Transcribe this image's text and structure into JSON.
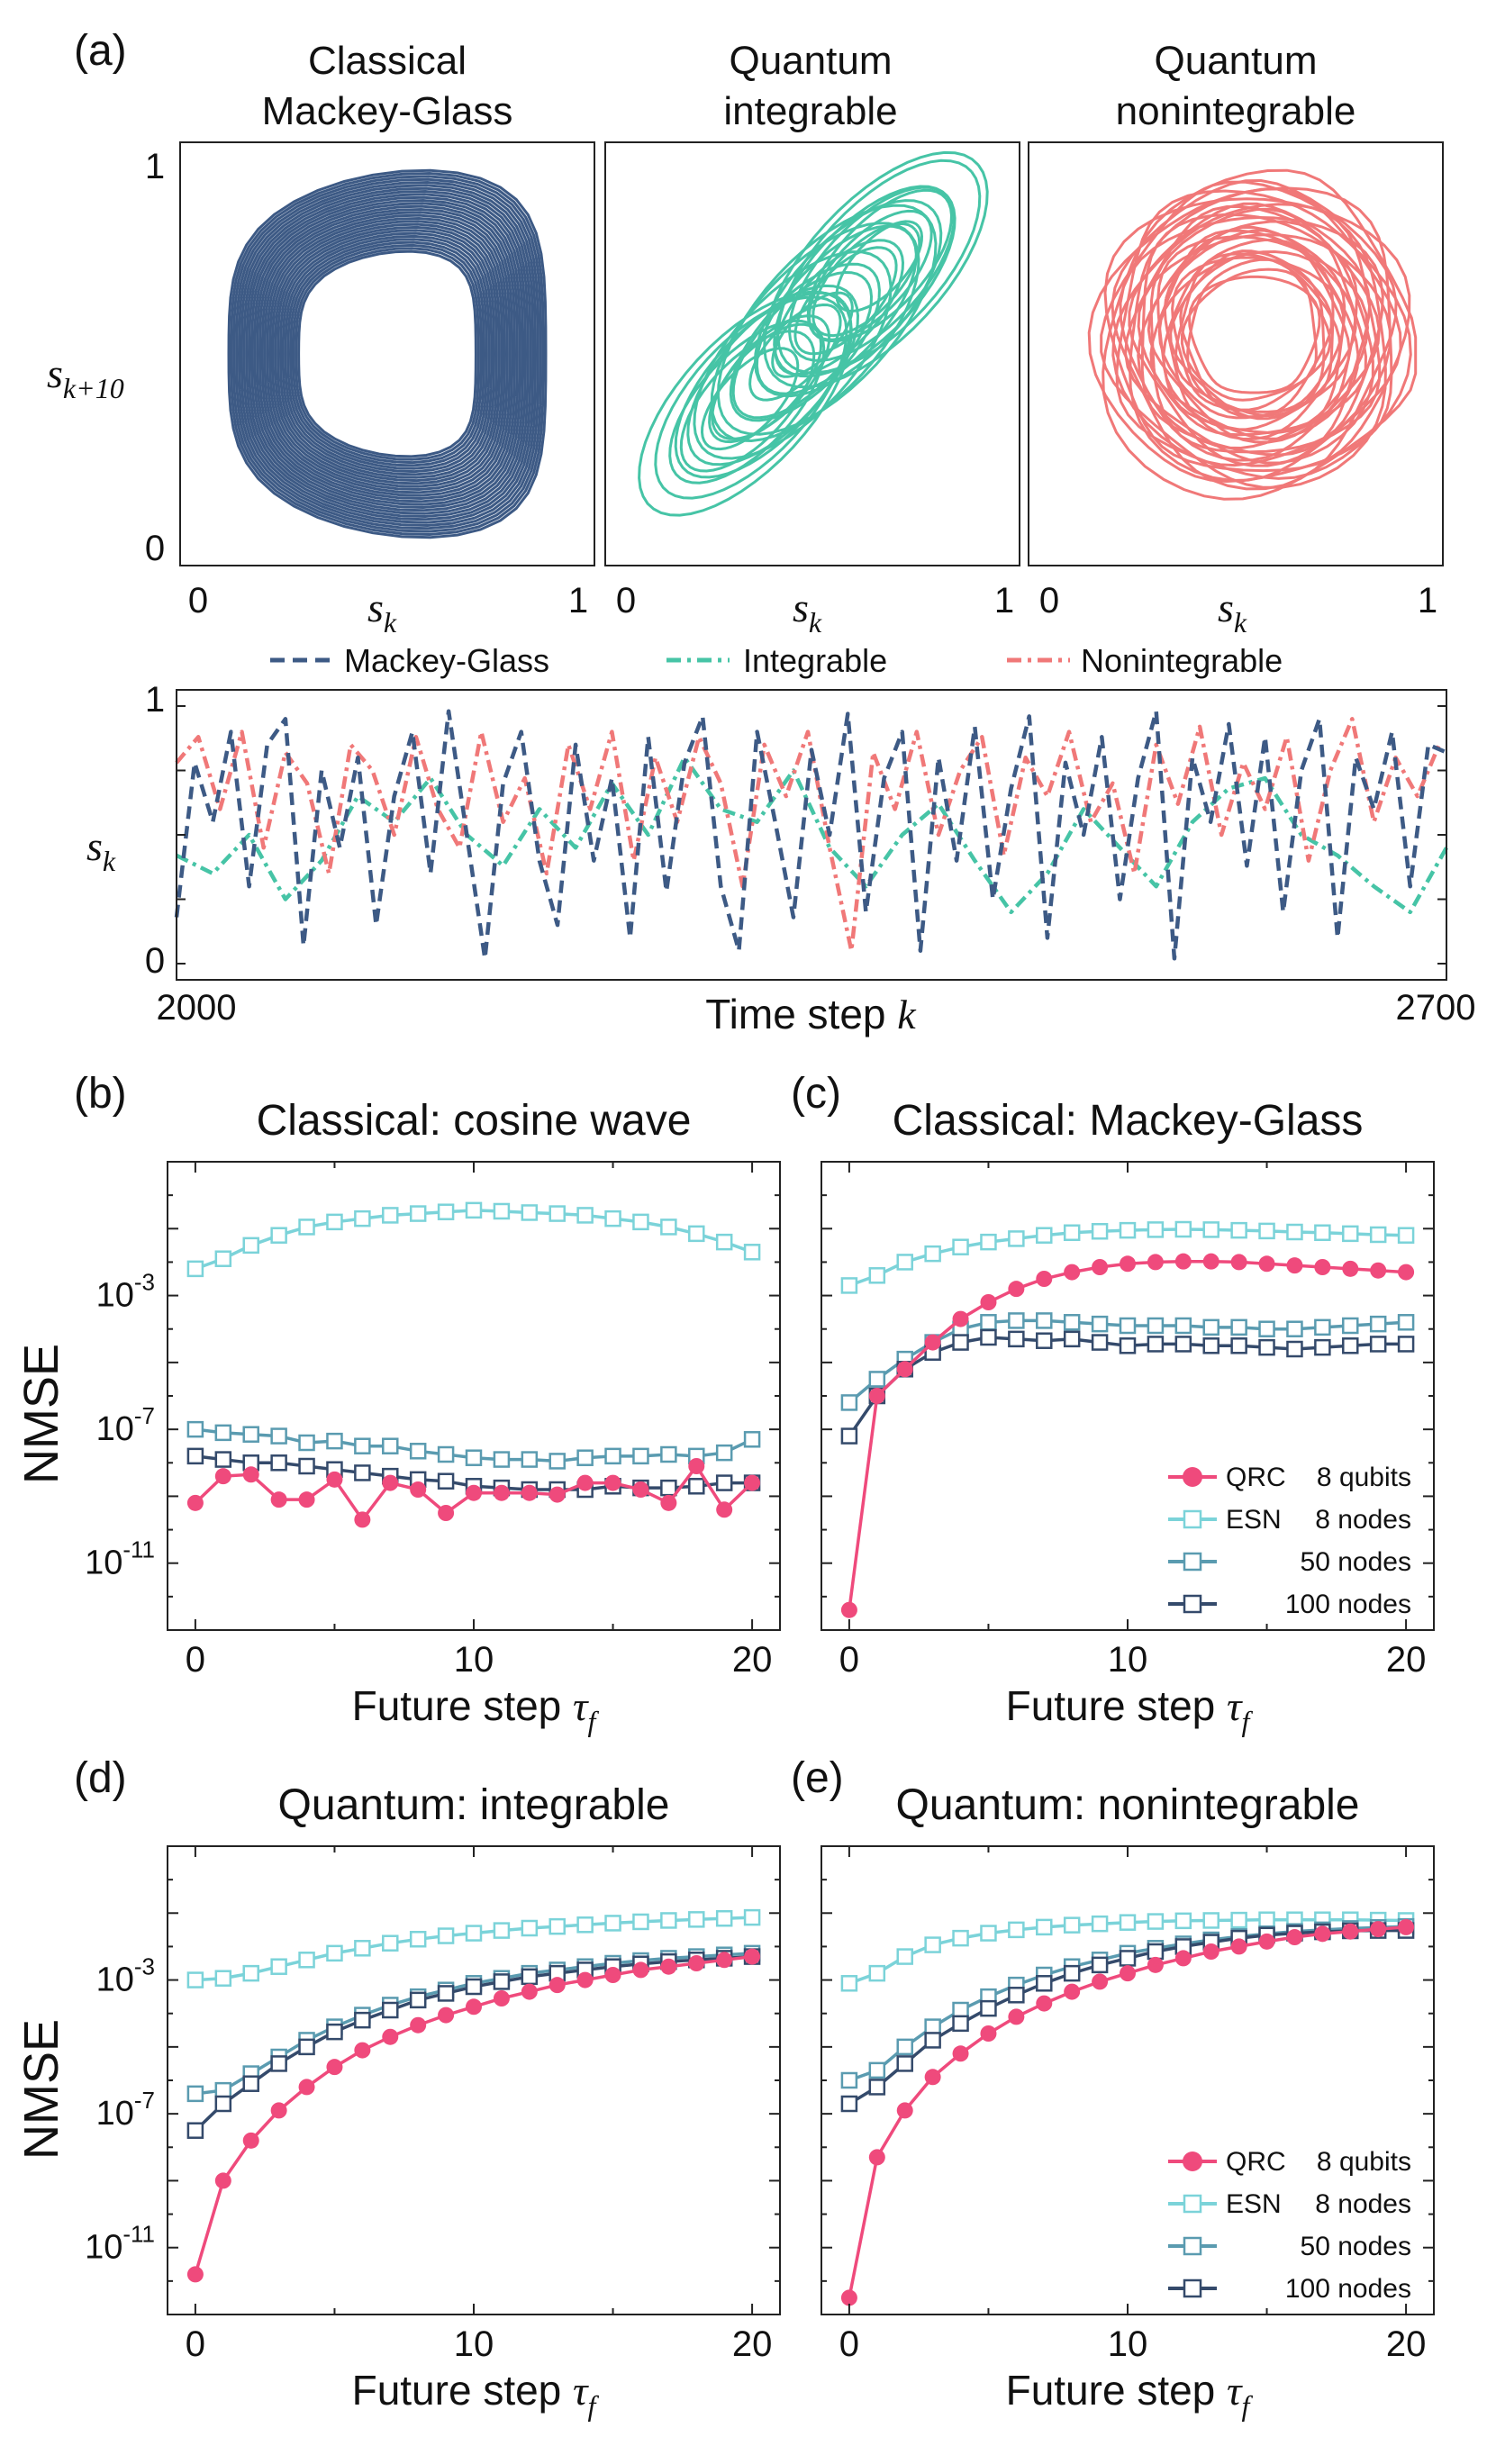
{
  "panel_letters": {
    "a": "(a)",
    "b": "(b)",
    "c": "(c)",
    "d": "(d)",
    "e": "(e)"
  },
  "phase": {
    "titles": [
      [
        "Classical",
        "Mackey-Glass"
      ],
      [
        "Quantum",
        "integrable"
      ],
      [
        "Quantum",
        "nonintegrable"
      ]
    ],
    "ylabel": "s",
    "ylabel_sub": "k+10",
    "xlabel": "s",
    "xlabel_sub": "k",
    "tick_0": "0",
    "tick_1": "1",
    "colors": [
      "#3d5a85",
      "#46c4a6",
      "#f07878"
    ]
  },
  "timeseries": {
    "legend": [
      "Mackey-Glass",
      "Integrable",
      "Nonintegrable"
    ],
    "ylabel": "s",
    "ylabel_sub": "k",
    "xlabel": "Time step ",
    "xlabel_var": "k",
    "x_start_label": "2000",
    "x_end_label": "2700",
    "y_tick_0": "0",
    "y_tick_1": "1"
  },
  "nmse_common": {
    "ylabel": "NMSE",
    "xlabel": "Future step ",
    "xlabel_var": "τ",
    "xlabel_sub": "f",
    "x_ticks": [
      "0",
      "10",
      "20"
    ],
    "legend": [
      {
        "label": "QRC",
        "detail": "8 qubits",
        "color": "#ef4a7c"
      },
      {
        "label": "ESN",
        "detail": "8 nodes",
        "color": "#7bd3d9"
      },
      {
        "label": "",
        "detail": "50 nodes",
        "color": "#5a9bb0"
      },
      {
        "label": "",
        "detail": "100 nodes",
        "color": "#344a6b"
      }
    ]
  },
  "chart_data": [
    {
      "type": "line",
      "panel": "(a) time series",
      "title": "",
      "xlabel": "Time step k",
      "ylabel": "s_k",
      "xlim": [
        2000,
        2700
      ],
      "ylim": [
        0,
        1
      ],
      "series": [
        {
          "name": "Mackey-Glass",
          "style": "dashed",
          "color": "#3d5a85",
          "x": [
            2000,
            2010,
            2020,
            2030,
            2040,
            2050,
            2060,
            2070,
            2080,
            2090,
            2100,
            2110,
            2120,
            2130,
            2140,
            2150,
            2160,
            2170,
            2180,
            2190,
            2200,
            2210,
            2220,
            2230,
            2240,
            2250,
            2260,
            2270,
            2280,
            2290,
            2300,
            2310,
            2320,
            2330,
            2340,
            2350,
            2360,
            2370,
            2380,
            2390,
            2400,
            2410,
            2420,
            2430,
            2440,
            2450,
            2460,
            2470,
            2480,
            2490,
            2500,
            2510,
            2520,
            2530,
            2540,
            2550,
            2560,
            2570,
            2580,
            2590,
            2600,
            2610,
            2620,
            2630,
            2640,
            2650,
            2660,
            2670,
            2680,
            2690,
            2700
          ],
          "values": [
            0.18,
            0.78,
            0.55,
            0.9,
            0.3,
            0.85,
            0.95,
            0.07,
            0.75,
            0.45,
            0.8,
            0.15,
            0.65,
            0.9,
            0.35,
            0.98,
            0.5,
            0.02,
            0.7,
            0.9,
            0.4,
            0.15,
            0.85,
            0.4,
            0.72,
            0.1,
            0.88,
            0.28,
            0.78,
            0.96,
            0.3,
            0.05,
            0.9,
            0.55,
            0.18,
            0.83,
            0.5,
            0.97,
            0.2,
            0.72,
            0.9,
            0.05,
            0.8,
            0.4,
            0.92,
            0.25,
            0.68,
            0.96,
            0.1,
            0.78,
            0.5,
            0.88,
            0.25,
            0.72,
            0.98,
            0.02,
            0.8,
            0.55,
            0.93,
            0.38,
            0.88,
            0.2,
            0.75,
            0.95,
            0.1,
            0.8,
            0.6,
            0.9,
            0.3,
            0.85,
            0.82
          ]
        },
        {
          "name": "Integrable",
          "style": "dash-dot",
          "color": "#46c4a6",
          "x": [
            2000,
            2020,
            2040,
            2060,
            2080,
            2100,
            2120,
            2140,
            2160,
            2180,
            2200,
            2220,
            2240,
            2260,
            2280,
            2300,
            2320,
            2340,
            2360,
            2380,
            2400,
            2420,
            2440,
            2460,
            2480,
            2500,
            2520,
            2540,
            2560,
            2580,
            2600,
            2620,
            2640,
            2660,
            2680,
            2700
          ],
          "values": [
            0.42,
            0.35,
            0.5,
            0.25,
            0.4,
            0.65,
            0.55,
            0.72,
            0.5,
            0.38,
            0.6,
            0.45,
            0.7,
            0.5,
            0.8,
            0.6,
            0.55,
            0.75,
            0.45,
            0.3,
            0.5,
            0.62,
            0.4,
            0.2,
            0.35,
            0.6,
            0.45,
            0.3,
            0.55,
            0.68,
            0.72,
            0.5,
            0.42,
            0.3,
            0.2,
            0.45
          ]
        },
        {
          "name": "Nonintegrable",
          "style": "dash-dot",
          "color": "#f07878",
          "x": [
            2000,
            2012,
            2024,
            2036,
            2048,
            2060,
            2072,
            2084,
            2096,
            2108,
            2120,
            2132,
            2144,
            2156,
            2168,
            2180,
            2192,
            2204,
            2216,
            2228,
            2240,
            2252,
            2264,
            2276,
            2288,
            2300,
            2312,
            2324,
            2336,
            2348,
            2360,
            2372,
            2384,
            2396,
            2408,
            2420,
            2432,
            2444,
            2456,
            2468,
            2480,
            2492,
            2504,
            2516,
            2528,
            2540,
            2552,
            2564,
            2576,
            2588,
            2600,
            2612,
            2624,
            2636,
            2648,
            2660,
            2672,
            2684,
            2696
          ],
          "values": [
            0.78,
            0.88,
            0.6,
            0.9,
            0.45,
            0.82,
            0.7,
            0.35,
            0.85,
            0.75,
            0.5,
            0.88,
            0.6,
            0.45,
            0.9,
            0.55,
            0.72,
            0.35,
            0.85,
            0.6,
            0.9,
            0.4,
            0.8,
            0.55,
            0.88,
            0.7,
            0.3,
            0.85,
            0.65,
            0.9,
            0.45,
            0.05,
            0.82,
            0.6,
            0.9,
            0.5,
            0.75,
            0.88,
            0.42,
            0.8,
            0.65,
            0.9,
            0.55,
            0.7,
            0.35,
            0.85,
            0.62,
            0.92,
            0.5,
            0.78,
            0.6,
            0.88,
            0.4,
            0.75,
            0.95,
            0.55,
            0.8,
            0.65,
            0.85
          ]
        }
      ]
    },
    {
      "type": "line",
      "panel": "(b)",
      "title": "Classical: cosine wave",
      "xlabel": "Future step τ_f",
      "ylabel": "NMSE",
      "yscale": "log",
      "xlim": [
        -1,
        21
      ],
      "ylim_exp": [
        -13,
        1
      ],
      "y_tick_exps": [
        -3,
        -7,
        -11
      ],
      "x": [
        0,
        1,
        2,
        3,
        4,
        5,
        6,
        7,
        8,
        9,
        10,
        11,
        12,
        13,
        14,
        15,
        16,
        17,
        18,
        19,
        20
      ],
      "series": [
        {
          "name": "QRC 8 qubits",
          "log10": [
            -9.2,
            -8.4,
            -8.35,
            -9.1,
            -9.1,
            -8.5,
            -9.7,
            -8.6,
            -8.8,
            -9.5,
            -8.9,
            -8.9,
            -8.9,
            -8.95,
            -8.6,
            -8.6,
            -8.8,
            -9.2,
            -8.1,
            -9.4,
            -8.6
          ]
        },
        {
          "name": "ESN 8 nodes",
          "log10": [
            -2.2,
            -1.9,
            -1.5,
            -1.2,
            -0.95,
            -0.8,
            -0.7,
            -0.6,
            -0.55,
            -0.5,
            -0.45,
            -0.48,
            -0.52,
            -0.55,
            -0.6,
            -0.7,
            -0.8,
            -0.95,
            -1.15,
            -1.4,
            -1.7
          ]
        },
        {
          "name": "ESN 50 nodes",
          "log10": [
            -7.0,
            -7.1,
            -7.15,
            -7.2,
            -7.4,
            -7.35,
            -7.5,
            -7.5,
            -7.65,
            -7.75,
            -7.85,
            -7.9,
            -7.9,
            -7.95,
            -7.85,
            -7.8,
            -7.8,
            -7.75,
            -7.8,
            -7.7,
            -7.3
          ]
        },
        {
          "name": "ESN 100 nodes",
          "log10": [
            -7.8,
            -7.9,
            -8.0,
            -8.0,
            -8.1,
            -8.2,
            -8.3,
            -8.4,
            -8.5,
            -8.55,
            -8.7,
            -8.75,
            -8.8,
            -8.8,
            -8.8,
            -8.7,
            -8.75,
            -8.75,
            -8.7,
            -8.6,
            -8.6
          ]
        }
      ]
    },
    {
      "type": "line",
      "panel": "(c)",
      "title": "Classical: Mackey-Glass",
      "xlabel": "Future step τ_f",
      "ylabel": "NMSE",
      "yscale": "log",
      "xlim": [
        -1,
        21
      ],
      "ylim_exp": [
        -13,
        1
      ],
      "y_tick_exps": [
        -3,
        -7,
        -11
      ],
      "x": [
        0,
        1,
        2,
        3,
        4,
        5,
        6,
        7,
        8,
        9,
        10,
        11,
        12,
        13,
        14,
        15,
        16,
        17,
        18,
        19,
        20
      ],
      "series": [
        {
          "name": "QRC 8 qubits",
          "log10": [
            -12.4,
            -6.0,
            -5.2,
            -4.4,
            -3.7,
            -3.2,
            -2.8,
            -2.5,
            -2.3,
            -2.15,
            -2.05,
            -2.0,
            -1.98,
            -1.98,
            -2.0,
            -2.05,
            -2.1,
            -2.15,
            -2.2,
            -2.25,
            -2.3
          ]
        },
        {
          "name": "ESN 8 nodes",
          "log10": [
            -2.7,
            -2.4,
            -2.0,
            -1.75,
            -1.55,
            -1.4,
            -1.3,
            -1.2,
            -1.12,
            -1.08,
            -1.05,
            -1.03,
            -1.02,
            -1.03,
            -1.05,
            -1.07,
            -1.1,
            -1.12,
            -1.15,
            -1.18,
            -1.2
          ]
        },
        {
          "name": "ESN 50 nodes",
          "log10": [
            -6.2,
            -5.5,
            -4.9,
            -4.4,
            -4.0,
            -3.8,
            -3.75,
            -3.75,
            -3.8,
            -3.85,
            -3.9,
            -3.9,
            -3.9,
            -3.95,
            -3.95,
            -4.0,
            -4.0,
            -3.95,
            -3.9,
            -3.85,
            -3.8
          ]
        },
        {
          "name": "ESN 100 nodes",
          "log10": [
            -7.2,
            -6.0,
            -5.2,
            -4.7,
            -4.4,
            -4.25,
            -4.3,
            -4.35,
            -4.3,
            -4.4,
            -4.5,
            -4.45,
            -4.45,
            -4.5,
            -4.5,
            -4.55,
            -4.6,
            -4.55,
            -4.5,
            -4.45,
            -4.45
          ]
        }
      ]
    },
    {
      "type": "line",
      "panel": "(d)",
      "title": "Quantum: integrable",
      "xlabel": "Future step τ_f",
      "ylabel": "NMSE",
      "yscale": "log",
      "xlim": [
        -1,
        21
      ],
      "ylim_exp": [
        -13,
        1
      ],
      "y_tick_exps": [
        -3,
        -7,
        -11
      ],
      "x": [
        0,
        1,
        2,
        3,
        4,
        5,
        6,
        7,
        8,
        9,
        10,
        11,
        12,
        13,
        14,
        15,
        16,
        17,
        18,
        19,
        20
      ],
      "series": [
        {
          "name": "QRC 8 qubits",
          "log10": [
            -11.8,
            -9.0,
            -7.8,
            -6.9,
            -6.2,
            -5.6,
            -5.1,
            -4.7,
            -4.35,
            -4.05,
            -3.8,
            -3.55,
            -3.35,
            -3.15,
            -3.0,
            -2.85,
            -2.7,
            -2.6,
            -2.5,
            -2.4,
            -2.3
          ]
        },
        {
          "name": "ESN 8 nodes",
          "log10": [
            -3.0,
            -2.95,
            -2.8,
            -2.6,
            -2.4,
            -2.2,
            -2.05,
            -1.9,
            -1.78,
            -1.68,
            -1.6,
            -1.52,
            -1.45,
            -1.4,
            -1.35,
            -1.3,
            -1.26,
            -1.22,
            -1.19,
            -1.16,
            -1.13
          ]
        },
        {
          "name": "ESN 50 nodes",
          "log10": [
            -6.4,
            -6.3,
            -5.8,
            -5.3,
            -4.8,
            -4.4,
            -4.05,
            -3.75,
            -3.5,
            -3.3,
            -3.1,
            -2.95,
            -2.8,
            -2.7,
            -2.6,
            -2.5,
            -2.42,
            -2.35,
            -2.3,
            -2.25,
            -2.2
          ]
        },
        {
          "name": "ESN 100 nodes",
          "log10": [
            -7.5,
            -6.7,
            -6.1,
            -5.5,
            -5.0,
            -4.55,
            -4.2,
            -3.9,
            -3.6,
            -3.4,
            -3.2,
            -3.05,
            -2.9,
            -2.8,
            -2.7,
            -2.6,
            -2.52,
            -2.45,
            -2.4,
            -2.35,
            -2.3
          ]
        }
      ]
    },
    {
      "type": "line",
      "panel": "(e)",
      "title": "Quantum: nonintegrable",
      "xlabel": "Future step τ_f",
      "ylabel": "NMSE",
      "yscale": "log",
      "xlim": [
        -1,
        21
      ],
      "ylim_exp": [
        -13,
        1
      ],
      "y_tick_exps": [
        -3,
        -7,
        -11
      ],
      "x": [
        0,
        1,
        2,
        3,
        4,
        5,
        6,
        7,
        8,
        9,
        10,
        11,
        12,
        13,
        14,
        15,
        16,
        17,
        18,
        19,
        20
      ],
      "series": [
        {
          "name": "QRC 8 qubits",
          "log10": [
            -12.5,
            -8.3,
            -6.9,
            -5.9,
            -5.2,
            -4.6,
            -4.1,
            -3.7,
            -3.35,
            -3.05,
            -2.8,
            -2.55,
            -2.35,
            -2.15,
            -2.0,
            -1.85,
            -1.72,
            -1.62,
            -1.55,
            -1.48,
            -1.42
          ]
        },
        {
          "name": "ESN 8 nodes",
          "log10": [
            -3.1,
            -2.8,
            -2.3,
            -1.95,
            -1.75,
            -1.6,
            -1.5,
            -1.42,
            -1.36,
            -1.32,
            -1.28,
            -1.25,
            -1.23,
            -1.22,
            -1.21,
            -1.2,
            -1.2,
            -1.2,
            -1.2,
            -1.21,
            -1.22
          ]
        },
        {
          "name": "ESN 50 nodes",
          "log10": [
            -6.0,
            -5.7,
            -5.0,
            -4.4,
            -3.9,
            -3.5,
            -3.15,
            -2.85,
            -2.6,
            -2.4,
            -2.2,
            -2.05,
            -1.92,
            -1.8,
            -1.7,
            -1.62,
            -1.55,
            -1.5,
            -1.46,
            -1.43,
            -1.4
          ]
        },
        {
          "name": "ESN 100 nodes",
          "log10": [
            -6.7,
            -6.2,
            -5.5,
            -4.8,
            -4.3,
            -3.85,
            -3.45,
            -3.1,
            -2.8,
            -2.55,
            -2.35,
            -2.15,
            -2.0,
            -1.87,
            -1.75,
            -1.66,
            -1.6,
            -1.56,
            -1.53,
            -1.52,
            -1.52
          ]
        }
      ]
    }
  ]
}
